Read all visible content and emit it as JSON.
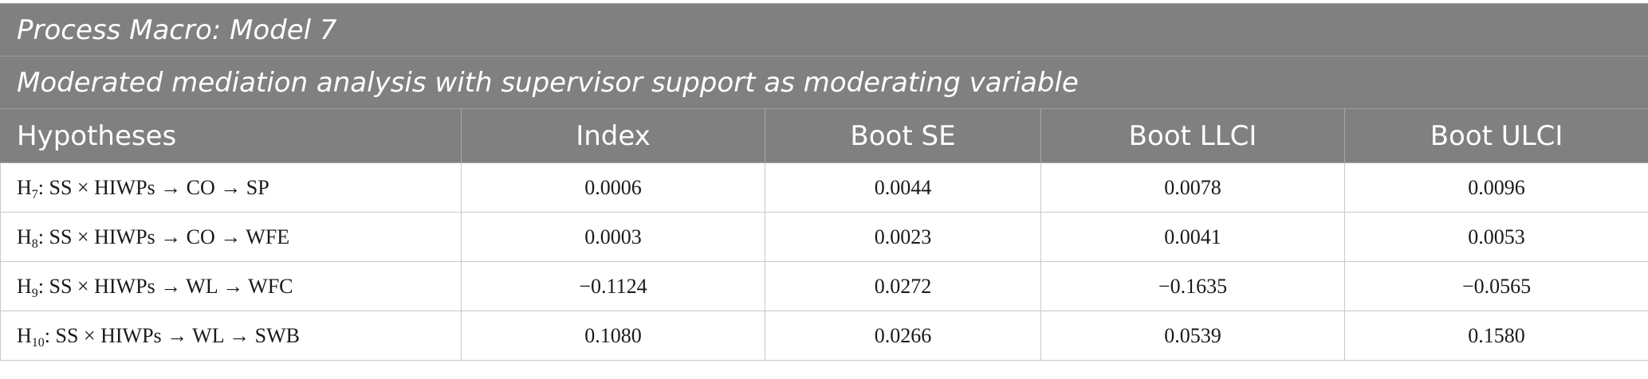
{
  "table": {
    "title": "Process Macro: Model 7",
    "subtitle": "Moderated mediation analysis with supervisor support as moderating variable",
    "columns": [
      "Hypotheses",
      "Index",
      "Boot SE",
      "Boot LLCI",
      "Boot ULCI"
    ],
    "rows": [
      {
        "hyp_prefix": "H",
        "hyp_sub": "7",
        "hyp_text": ": SS × HIWPs → CO → SP",
        "index": "0.0006",
        "boot_se": "0.0044",
        "boot_llci": "0.0078",
        "boot_ulci": "0.0096"
      },
      {
        "hyp_prefix": "H",
        "hyp_sub": "8",
        "hyp_text": ": SS × HIWPs → CO → WFE",
        "index": "0.0003",
        "boot_se": "0.0023",
        "boot_llci": "0.0041",
        "boot_ulci": "0.0053"
      },
      {
        "hyp_prefix": "H",
        "hyp_sub": "9",
        "hyp_text": ": SS × HIWPs → WL → WFC",
        "index": "−0.1124",
        "boot_se": "0.0272",
        "boot_llci": "−0.1635",
        "boot_ulci": "−0.0565"
      },
      {
        "hyp_prefix": "H",
        "hyp_sub": "10",
        "hyp_text": ": SS × HIWPs → WL → SWB",
        "index": "0.1080",
        "boot_se": "0.0266",
        "boot_llci": "0.0539",
        "boot_ulci": "0.1580"
      }
    ]
  }
}
